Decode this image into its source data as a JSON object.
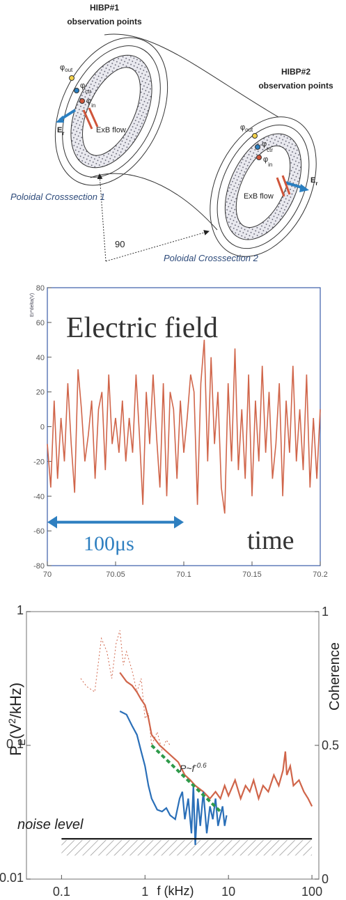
{
  "diagram": {
    "hibp1": {
      "title": "HIBP#1",
      "subtitle": "observation points"
    },
    "hibp2": {
      "title": "HIBP#2",
      "subtitle": "observation points"
    },
    "section1": {
      "points": [
        {
          "symbol": "φ",
          "sub": "out"
        },
        {
          "symbol": "φ",
          "sub": "ctr"
        },
        {
          "symbol": "φ",
          "sub": "in"
        }
      ],
      "field": {
        "symbol": "E",
        "sub": "r"
      },
      "flow": "ExB flow",
      "label": "Poloidal Crosssection 1"
    },
    "section2": {
      "points": [
        {
          "symbol": "φ",
          "sub": "out"
        },
        {
          "symbol": "φ",
          "sub": "ctr"
        },
        {
          "symbol": "φ",
          "sub": "in"
        }
      ],
      "field": {
        "symbol": "E",
        "sub": "r"
      },
      "flow": "ExB flow",
      "label": "Poloidal Crosssection 2"
    },
    "angle": "90"
  },
  "chart_data": [
    {
      "type": "line",
      "ylabel": "Er*delta(V)",
      "color": "#d0654a",
      "frame_color": "#3a5ca8",
      "annotations": {
        "title": "Electric field",
        "span_label": "100μs",
        "axis_note": "time"
      },
      "span": {
        "x": [
          70,
          70.1
        ],
        "y": -55,
        "color": "#2e7fc0"
      },
      "xlim": [
        70,
        70.2
      ],
      "xticks": [
        70,
        70.05,
        70.1,
        70.15,
        70.2
      ],
      "ylim": [
        -80,
        80
      ],
      "yticks": [
        -80,
        -60,
        -40,
        -20,
        0,
        20,
        40,
        60,
        80
      ],
      "x": [
        70,
        70.0025,
        70.005,
        70.0075,
        70.01,
        70.0125,
        70.015,
        70.0175,
        70.02,
        70.0225,
        70.025,
        70.0275,
        70.03,
        70.0325,
        70.035,
        70.0375,
        70.04,
        70.0425,
        70.045,
        70.0475,
        70.05,
        70.0525,
        70.055,
        70.0575,
        70.06,
        70.0625,
        70.065,
        70.0675,
        70.07,
        70.0725,
        70.075,
        70.0775,
        70.08,
        70.0825,
        70.085,
        70.0875,
        70.09,
        70.0925,
        70.095,
        70.0975,
        70.1,
        70.1025,
        70.105,
        70.1075,
        70.11,
        70.1125,
        70.115,
        70.1175,
        70.12,
        70.1225,
        70.125,
        70.1275,
        70.13,
        70.1325,
        70.135,
        70.1375,
        70.14,
        70.1425,
        70.145,
        70.1475,
        70.15,
        70.1525,
        70.155,
        70.1575,
        70.16,
        70.1625,
        70.165,
        70.1675,
        70.17,
        70.1725,
        70.175,
        70.1775,
        70.18,
        70.1825,
        70.185,
        70.1875,
        70.19,
        70.1925,
        70.195,
        70.1975,
        70.2
      ],
      "values": [
        -10,
        -35,
        15,
        -30,
        5,
        -20,
        25,
        -10,
        -38,
        33,
        10,
        -20,
        -5,
        15,
        -30,
        10,
        20,
        -25,
        30,
        -10,
        5,
        -15,
        15,
        -20,
        5,
        -15,
        30,
        -5,
        -45,
        20,
        -10,
        30,
        -5,
        -35,
        25,
        -40,
        20,
        10,
        -30,
        15,
        -15,
        5,
        30,
        20,
        -45,
        25,
        50,
        -20,
        40,
        -10,
        20,
        -35,
        -50,
        25,
        -20,
        45,
        -25,
        10,
        -30,
        30,
        -40,
        15,
        -20,
        35,
        -15,
        20,
        -30,
        -10,
        25,
        -40,
        15,
        -15,
        35,
        -20,
        10,
        -25,
        30,
        -35,
        5,
        -30,
        10
      ]
    },
    {
      "type": "line",
      "log_x": true,
      "log_y": true,
      "frame_color": "#888888",
      "ylabel": {
        "main": "P",
        "sub": "E",
        "rest": "(V",
        "sup": "2",
        "end": "/kHz)"
      },
      "y2label": "Coherence",
      "xlabel": "f (kHz)",
      "annotations": {
        "fit": {
          "text": "P~f",
          "sup": "-0.6"
        },
        "noise": "noise level"
      },
      "xlim": [
        0.038,
        121
      ],
      "xticks": [
        0.1,
        1,
        10,
        100
      ],
      "ylim": [
        0.01,
        1
      ],
      "yticks": [
        0.01,
        0.1,
        1
      ],
      "y2lim": [
        0,
        1
      ],
      "y2ticks": [
        0,
        0.5,
        1
      ],
      "series": [
        {
          "color": "#d0654a",
          "style": "solid",
          "x": [
            0.5,
            0.6,
            0.7,
            0.8,
            0.9,
            1.0,
            1.1,
            1.2,
            1.5,
            2,
            2.5,
            3,
            3.5,
            4,
            5,
            6,
            7,
            8,
            9,
            10,
            12,
            14,
            16,
            18,
            20,
            23,
            26,
            30,
            35,
            40,
            45,
            48,
            50,
            55,
            60,
            70,
            80,
            90,
            100
          ],
          "values": [
            0.35,
            0.3,
            0.28,
            0.25,
            0.22,
            0.2,
            0.16,
            0.12,
            0.1,
            0.085,
            0.075,
            0.06,
            0.055,
            0.05,
            0.045,
            0.04,
            0.045,
            0.04,
            0.05,
            0.042,
            0.055,
            0.04,
            0.05,
            0.045,
            0.055,
            0.04,
            0.05,
            0.045,
            0.06,
            0.05,
            0.065,
            0.09,
            0.06,
            0.07,
            0.05,
            0.055,
            0.045,
            0.04,
            0.035
          ]
        },
        {
          "color": "#2a6fb8",
          "style": "solid",
          "x": [
            0.5,
            0.6,
            0.7,
            0.8,
            0.9,
            1.0,
            1.1,
            1.2,
            1.4,
            1.6,
            1.8,
            2,
            2.3,
            2.6,
            2.8,
            3.0,
            3.3,
            3.6,
            3.8,
            4,
            4.3,
            4.6,
            5,
            5.5,
            6,
            6.5,
            7,
            7.5,
            8,
            8.5,
            9,
            9.5
          ],
          "values": [
            0.18,
            0.17,
            0.14,
            0.12,
            0.09,
            0.07,
            0.05,
            0.04,
            0.033,
            0.032,
            0.034,
            0.03,
            0.028,
            0.04,
            0.045,
            0.028,
            0.04,
            0.022,
            0.05,
            0.018,
            0.04,
            0.025,
            0.045,
            0.022,
            0.035,
            0.028,
            0.04,
            0.025,
            0.03,
            0.035,
            0.025,
            0.03
          ]
        },
        {
          "color": "#d0654a",
          "style": "dotted",
          "axis": "y2",
          "x": [
            0.17,
            0.2,
            0.25,
            0.3,
            0.35,
            0.4,
            0.45,
            0.5,
            0.55,
            0.6,
            0.7,
            0.8,
            0.9,
            1.0,
            1.1,
            1.2,
            1.4,
            1.6,
            1.8,
            2
          ],
          "values": [
            0.75,
            0.72,
            0.7,
            0.9,
            0.85,
            0.75,
            0.88,
            0.93,
            0.8,
            0.85,
            0.78,
            0.7,
            0.75,
            0.6,
            0.62,
            0.5,
            0.55,
            0.48,
            0.52,
            0.5
          ]
        },
        {
          "color": "#2e9a4a",
          "style": "dashed",
          "x": [
            1.2,
            8
          ],
          "values": [
            0.1,
            0.032
          ]
        },
        {
          "color": "#111111",
          "style": "solid",
          "x": [
            0.1,
            100
          ],
          "values": [
            0.02,
            0.02
          ]
        }
      ]
    }
  ]
}
